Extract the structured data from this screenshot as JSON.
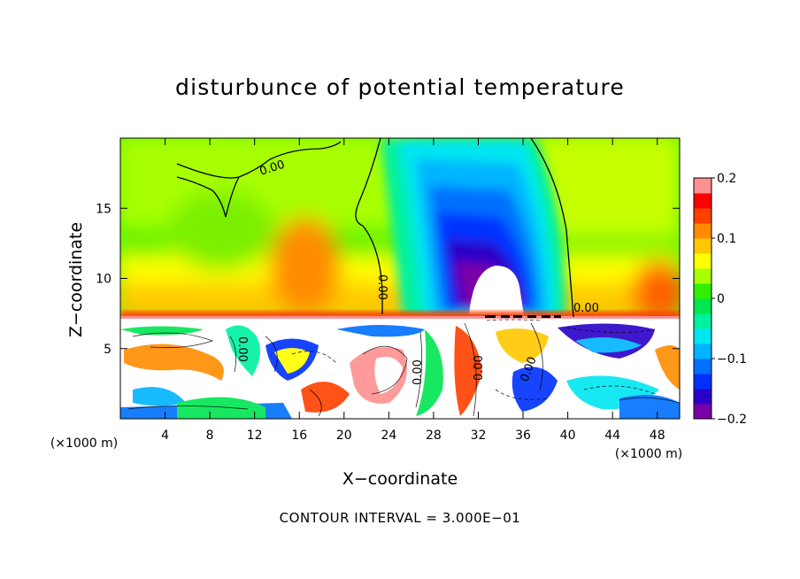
{
  "chart_data": {
    "type": "heatmap",
    "title": "disturbunce of potential temperature",
    "xlabel": "X−coordinate",
    "ylabel": "Z−coordinate",
    "x_unit_label": "(×1000 m)",
    "footer": "CONTOUR INTERVAL = 3.000E−01",
    "xlim": [
      0,
      50
    ],
    "ylim": [
      0,
      20
    ],
    "x_ticks": [
      4,
      8,
      12,
      16,
      20,
      24,
      28,
      32,
      36,
      40,
      44,
      48
    ],
    "y_ticks": [
      5,
      10,
      15
    ],
    "colorbar": {
      "range": [
        -0.2,
        0.2
      ],
      "ticks": [
        "0.2",
        "0.1",
        "0",
        "−0.1",
        "−0.2"
      ],
      "colors": [
        "#7a00a8",
        "#2a00c8",
        "#0030ff",
        "#0070ff",
        "#00b4ff",
        "#00e6f0",
        "#00f0a0",
        "#00e650",
        "#30f000",
        "#a8ff00",
        "#ffff00",
        "#ffc800",
        "#ff8c00",
        "#ff4000",
        "#ff0000",
        "#ff9090"
      ]
    },
    "contour_labels": [
      "0.00",
      "0.00",
      "0.00",
      "0.00",
      "0.00",
      "0.00",
      "0.00"
    ],
    "features": [
      {
        "name": "upper-cold-anomaly",
        "x_center": 33.5,
        "z_top": 19,
        "z_bottom": 7.5,
        "min_value": -0.2
      },
      {
        "name": "warm-layer",
        "z": 7.5,
        "value": 0.15
      },
      {
        "name": "turbulent-lower-layer",
        "z_range": [
          0,
          7.3
        ]
      }
    ]
  }
}
